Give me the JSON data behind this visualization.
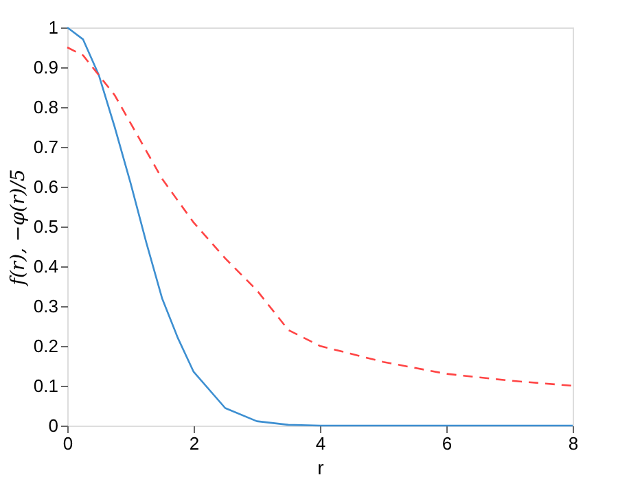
{
  "chart_data": {
    "type": "line",
    "xlabel": "r",
    "ylabel": "f(r), −φ(r)/5",
    "xlim": [
      0,
      8
    ],
    "ylim": [
      0,
      1
    ],
    "xticks": [
      0,
      2,
      4,
      6,
      8
    ],
    "yticks": [
      0,
      0.1,
      0.2,
      0.3,
      0.4,
      0.5,
      0.6,
      0.7,
      0.8,
      0.9,
      1
    ],
    "grid": false,
    "series": [
      {
        "color": "#3d8fd1",
        "line_style": "solid",
        "x": [
          0,
          0.25,
          0.5,
          0.75,
          1,
          1.25,
          1.5,
          1.75,
          2,
          2.5,
          3,
          3.5,
          4,
          5,
          6,
          7,
          8
        ],
        "values": [
          1,
          0.97,
          0.88,
          0.75,
          0.61,
          0.46,
          0.32,
          0.22,
          0.135,
          0.044,
          0.011,
          0.002,
          0,
          0,
          0,
          0,
          0
        ]
      },
      {
        "color": "#ff4444",
        "line_style": "dashed",
        "x": [
          0,
          0.25,
          0.5,
          0.75,
          1,
          1.5,
          2,
          2.5,
          3,
          3.5,
          4,
          5,
          6,
          7,
          8
        ],
        "values": [
          0.95,
          0.93,
          0.88,
          0.83,
          0.76,
          0.62,
          0.51,
          0.42,
          0.34,
          0.24,
          0.2,
          0.16,
          0.13,
          0.113,
          0.1
        ]
      }
    ]
  }
}
